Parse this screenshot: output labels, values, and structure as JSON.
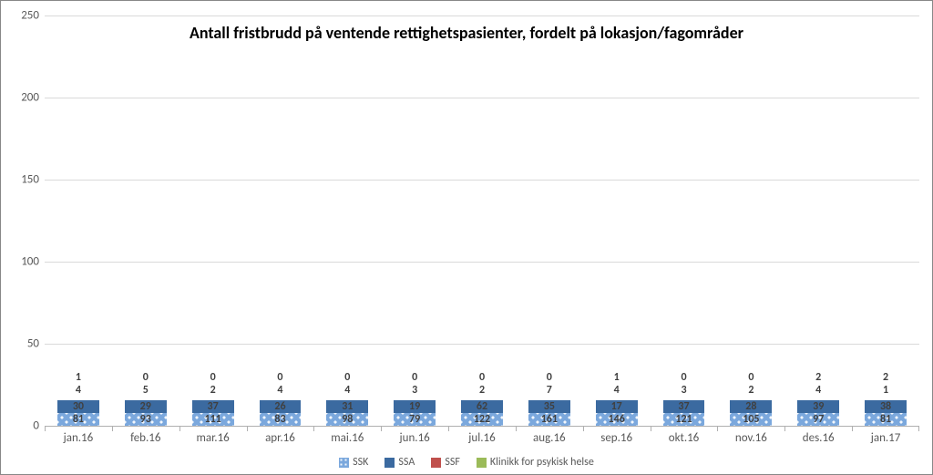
{
  "chart": {
    "type": "stacked-bar",
    "title": "Antall fristbrudd på ventende rettighetspasienter, fordelt på lokasjon/fagområder",
    "title_fontsize": 18,
    "background_color": "#ffffff",
    "grid_color": "#d9d9d9",
    "axis_color": "#b0b0b0",
    "tick_fontsize": 13,
    "label_color": "#595959",
    "ylim": [
      0,
      250
    ],
    "ytick_step": 50,
    "yticks": [
      0,
      50,
      100,
      150,
      200,
      250
    ],
    "categories": [
      "jan.16",
      "feb.16",
      "mar.16",
      "apr.16",
      "mai.16",
      "jun.16",
      "jul.16",
      "aug.16",
      "sep.16",
      "okt.16",
      "nov.16",
      "des.16",
      "jan.17"
    ],
    "series": [
      {
        "key": "ssk",
        "name": "SSK",
        "color": "#7ba8dd",
        "pattern": true
      },
      {
        "key": "ssa",
        "name": "SSA",
        "color": "#3b6aa0",
        "pattern": false
      },
      {
        "key": "ssf",
        "name": "SSF",
        "color": "#c0504d",
        "pattern": false
      },
      {
        "key": "kph",
        "name": "Klinikk for psykisk helse",
        "color": "#9bbb59",
        "pattern": false
      }
    ],
    "data": [
      {
        "ssk": 81,
        "ssa": 30,
        "ssf": 1,
        "kph": 4
      },
      {
        "ssk": 93,
        "ssa": 29,
        "ssf": 0,
        "kph": 5
      },
      {
        "ssk": 111,
        "ssa": 37,
        "ssf": 0,
        "kph": 2
      },
      {
        "ssk": 83,
        "ssa": 26,
        "ssf": 0,
        "kph": 4
      },
      {
        "ssk": 98,
        "ssa": 31,
        "ssf": 0,
        "kph": 4
      },
      {
        "ssk": 79,
        "ssa": 19,
        "ssf": 0,
        "kph": 3
      },
      {
        "ssk": 122,
        "ssa": 62,
        "ssf": 0,
        "kph": 2
      },
      {
        "ssk": 161,
        "ssa": 35,
        "ssf": 0,
        "kph": 7
      },
      {
        "ssk": 146,
        "ssa": 17,
        "ssf": 1,
        "kph": 4
      },
      {
        "ssk": 121,
        "ssa": 37,
        "ssf": 0,
        "kph": 3
      },
      {
        "ssk": 105,
        "ssa": 28,
        "ssf": 0,
        "kph": 2
      },
      {
        "ssk": 97,
        "ssa": 39,
        "ssf": 2,
        "kph": 4
      },
      {
        "ssk": 81,
        "ssa": 38,
        "ssf": 2,
        "kph": 1
      }
    ],
    "bar_width_ratio": 0.62,
    "data_label_fontsize": 12
  }
}
